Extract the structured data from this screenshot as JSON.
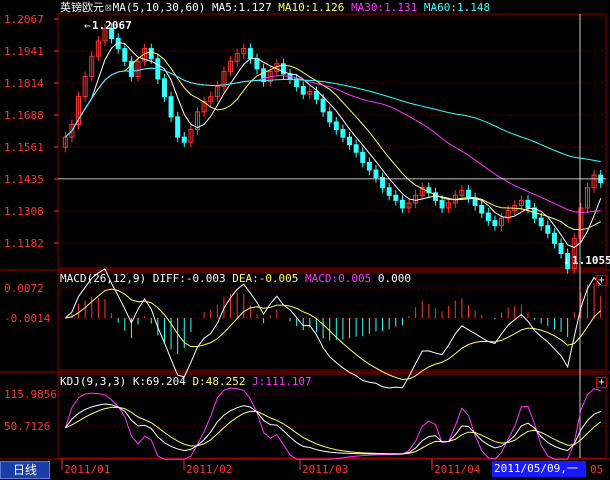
{
  "colors": {
    "up": "#ff3333",
    "down": "#33ffff",
    "ma5": "#ffffff",
    "ma10": "#ffff66",
    "ma30": "#ff33ff",
    "ma60": "#33ffff",
    "grid": "#880000",
    "axis_text": "#ff3333"
  },
  "header": {
    "symbol": "英镑欧元",
    "ma_label": "MA(5,10,30,60)",
    "ma5": "MA5:1.127",
    "ma10": "MA10:1.126",
    "ma30": "MA30:1.131",
    "ma60": "MA60:1.148"
  },
  "price_axis": [
    "1.2067",
    "1.1941",
    "1.1814",
    "1.1688",
    "1.1561",
    "1.1435",
    "1.1308",
    "1.1182"
  ],
  "high_label": "1.2067",
  "low_label": "1.1055",
  "macd": {
    "label": "MACD(26,12,9)",
    "diff": "DIFF:-0.003",
    "dea": "DEA:-0.005",
    "macd": "MACD:0.005",
    "extra": "0.000",
    "axis": [
      "0.0072",
      "-0.0014"
    ]
  },
  "kdj": {
    "label": "KDJ(9,3,3)",
    "k": "K:69.204",
    "d": "D:48.252",
    "j": "J:111.107",
    "axis": [
      "115.9856",
      "50.7126"
    ]
  },
  "footer": {
    "tab_label": "日线",
    "months": [
      "2011/01",
      "2011/02",
      "2011/03",
      "2011/04"
    ],
    "cursor_date": "2011/05/09,一",
    "last_month": "05"
  },
  "plus_icon": "+",
  "chart_data": {
    "type": "candlestick",
    "price_range": [
      1.1055,
      1.2067
    ],
    "current_price": 1.1435,
    "close": [
      1.16,
      1.165,
      1.176,
      1.184,
      1.192,
      1.198,
      1.203,
      1.199,
      1.195,
      1.19,
      1.184,
      1.19,
      1.195,
      1.191,
      1.183,
      1.176,
      1.168,
      1.16,
      1.158,
      1.163,
      1.17,
      1.174,
      1.176,
      1.18,
      1.186,
      1.19,
      1.193,
      1.195,
      1.191,
      1.187,
      1.182,
      1.186,
      1.189,
      1.185,
      1.183,
      1.18,
      1.177,
      1.178,
      1.175,
      1.17,
      1.166,
      1.163,
      1.16,
      1.157,
      1.154,
      1.15,
      1.147,
      1.144,
      1.14,
      1.137,
      1.135,
      1.132,
      1.134,
      1.137,
      1.14,
      1.138,
      1.135,
      1.132,
      1.134,
      1.137,
      1.139,
      1.136,
      1.133,
      1.13,
      1.127,
      1.125,
      1.128,
      1.131,
      1.133,
      1.135,
      1.132,
      1.128,
      1.125,
      1.122,
      1.118,
      1.114,
      1.108,
      1.12,
      1.132,
      1.14,
      1.145,
      1.142
    ]
  }
}
